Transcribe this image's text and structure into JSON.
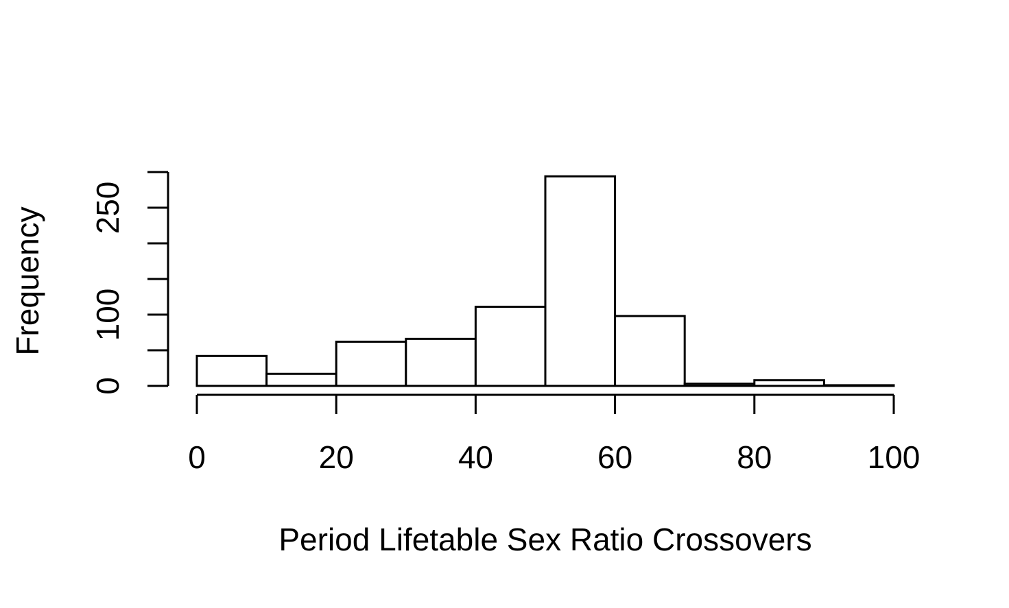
{
  "chart_data": {
    "type": "bar",
    "subtype": "histogram",
    "title": "",
    "xlabel": "Period Lifetable Sex Ratio Crossovers",
    "ylabel": "Frequency",
    "bin_edges": [
      0,
      10,
      20,
      30,
      40,
      50,
      60,
      70,
      80,
      90,
      100
    ],
    "values": [
      42,
      17,
      62,
      66,
      111,
      294,
      98,
      3,
      8,
      1
    ],
    "xlim": [
      0,
      100
    ],
    "ylim": [
      0,
      300
    ],
    "x_ticks": [
      0,
      20,
      40,
      60,
      80,
      100
    ],
    "x_tick_labels": [
      "0",
      "20",
      "40",
      "60",
      "80",
      "100"
    ],
    "y_ticks": [
      0,
      50,
      100,
      150,
      200,
      250,
      300
    ],
    "y_tick_labels": [
      "0",
      "",
      "100",
      "",
      "",
      "250",
      ""
    ],
    "bar_fill": "#ffffff",
    "bar_stroke": "#000000",
    "grid": false,
    "legend": "none"
  }
}
